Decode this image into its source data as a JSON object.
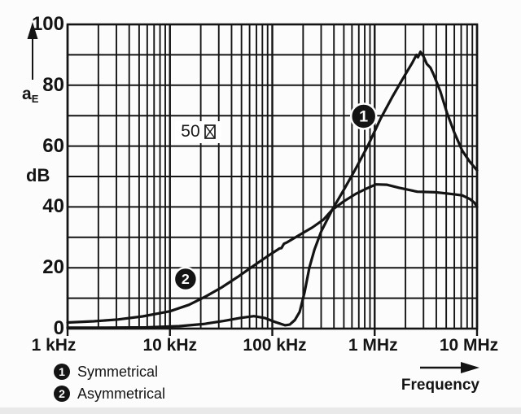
{
  "chart_data": {
    "type": "line",
    "title": "",
    "x_axis": {
      "label": "Frequency",
      "scale": "log",
      "decades": 4,
      "range_khz": [
        1,
        10000
      ],
      "tick_labels": [
        "1 kHz",
        "10 kHz",
        "100 kHz",
        "1 MHz",
        "10 MHz"
      ]
    },
    "y_axis": {
      "quantity_base": "a",
      "quantity_sub": "E",
      "unit": "dB",
      "range": [
        0,
        100
      ],
      "minor_grid_step_db": 10,
      "tick_labels": [
        "0",
        "20",
        "40",
        "60",
        "80",
        "100"
      ],
      "tick_values": [
        0,
        20,
        40,
        60,
        80,
        100
      ]
    },
    "grid": "on",
    "line_color": "#141414",
    "annotations": [
      {
        "text": "50",
        "symbol": "missing-glyph-box",
        "f_khz": 21,
        "db": 64.4
      }
    ],
    "series": [
      {
        "id": "1",
        "name": "Symmetrical",
        "marker_pos": {
          "f_khz": 780,
          "db": 69.8,
          "r": 15.5
        },
        "points_khz_db": [
          [
            1,
            0.3
          ],
          [
            2.4,
            0.3
          ],
          [
            5.9,
            0.4
          ],
          [
            12.3,
            0.8
          ],
          [
            21.3,
            1.5
          ],
          [
            33.6,
            2.5
          ],
          [
            48.4,
            3.5
          ],
          [
            66,
            4.1
          ],
          [
            84,
            3.5
          ],
          [
            106,
            2.2
          ],
          [
            133,
            1.1
          ],
          [
            148,
            1.3
          ],
          [
            166,
            2.8
          ],
          [
            185,
            5.5
          ],
          [
            207,
            12
          ],
          [
            230,
            20
          ],
          [
            258,
            26
          ],
          [
            301,
            32
          ],
          [
            384,
            39
          ],
          [
            497,
            45.5
          ],
          [
            639,
            52
          ],
          [
            855,
            60
          ],
          [
            1143,
            69
          ],
          [
            1507,
            76.5
          ],
          [
            1950,
            83
          ],
          [
            2340,
            87.5
          ],
          [
            2560,
            90
          ],
          [
            2650,
            89.2
          ],
          [
            2800,
            91
          ],
          [
            3000,
            89.5
          ],
          [
            3230,
            87
          ],
          [
            3500,
            85.8
          ],
          [
            3770,
            83.5
          ],
          [
            4380,
            78
          ],
          [
            5080,
            71
          ],
          [
            5990,
            64.5
          ],
          [
            7170,
            58.5
          ],
          [
            8440,
            55
          ],
          [
            10000,
            52
          ]
        ]
      },
      {
        "id": "2",
        "name": "Asymmetrical",
        "marker_pos": {
          "f_khz": 14.2,
          "db": 16.3,
          "r": 14
        },
        "points_khz_db": [
          [
            1,
            2
          ],
          [
            1.8,
            2.4
          ],
          [
            3.1,
            3
          ],
          [
            5.4,
            4
          ],
          [
            10,
            5.7
          ],
          [
            15.3,
            7.8
          ],
          [
            22.2,
            10.5
          ],
          [
            31.9,
            13.5
          ],
          [
            46,
            17
          ],
          [
            66,
            20.7
          ],
          [
            92,
            24
          ],
          [
            117,
            26.3
          ],
          [
            123,
            26.5
          ],
          [
            130,
            27.9
          ],
          [
            140,
            28.4
          ],
          [
            185,
            30.8
          ],
          [
            247,
            33.3
          ],
          [
            316,
            35.8
          ],
          [
            384,
            39
          ],
          [
            497,
            41.8
          ],
          [
            654,
            44.3
          ],
          [
            828,
            46
          ],
          [
            1030,
            47.4
          ],
          [
            1310,
            47.3
          ],
          [
            1720,
            46.3
          ],
          [
            2610,
            45
          ],
          [
            3920,
            44.8
          ],
          [
            5450,
            44.3
          ],
          [
            7170,
            43.8
          ],
          [
            8610,
            42.5
          ],
          [
            9460,
            41.3
          ],
          [
            10000,
            40
          ]
        ]
      }
    ],
    "legend": [
      {
        "marker": "1",
        "label": "Symmetrical"
      },
      {
        "marker": "2",
        "label": "Asymmetrical"
      }
    ]
  }
}
